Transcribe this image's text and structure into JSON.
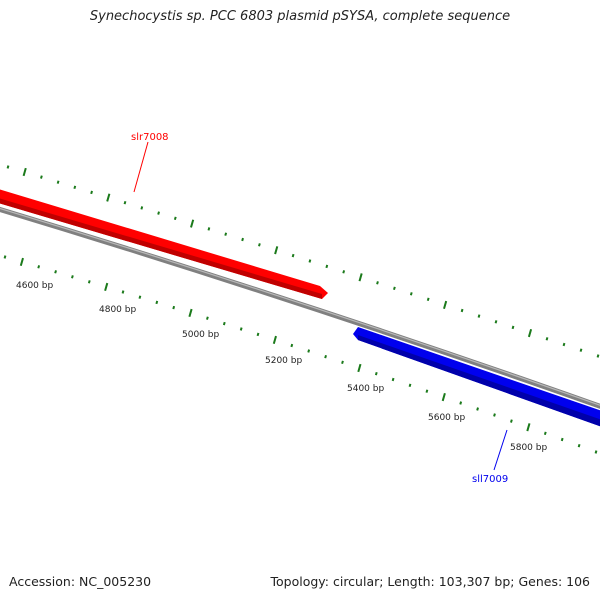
{
  "title": "Synechocystis sp. PCC 6803 plasmid pSYSA, complete sequence",
  "footer": {
    "accession": "Accession: NC_005230",
    "summary": "Topology: circular; Length: 103,307 bp; Genes: 106"
  },
  "colors": {
    "forward_gene": "#ff0000",
    "reverse_gene": "#0000ee",
    "backbone": "#808080",
    "ticks": "#1b7a1b",
    "text": "#222222"
  },
  "tick_labels": [
    "4600 bp",
    "4800 bp",
    "5000 bp",
    "5200 bp",
    "5400 bp",
    "5600 bp",
    "5800 bp"
  ],
  "genes": [
    {
      "name": "slr7008",
      "strand": "forward",
      "color": "#ff0000"
    },
    {
      "name": "sll7009",
      "strand": "reverse",
      "color": "#0000ee"
    }
  ]
}
